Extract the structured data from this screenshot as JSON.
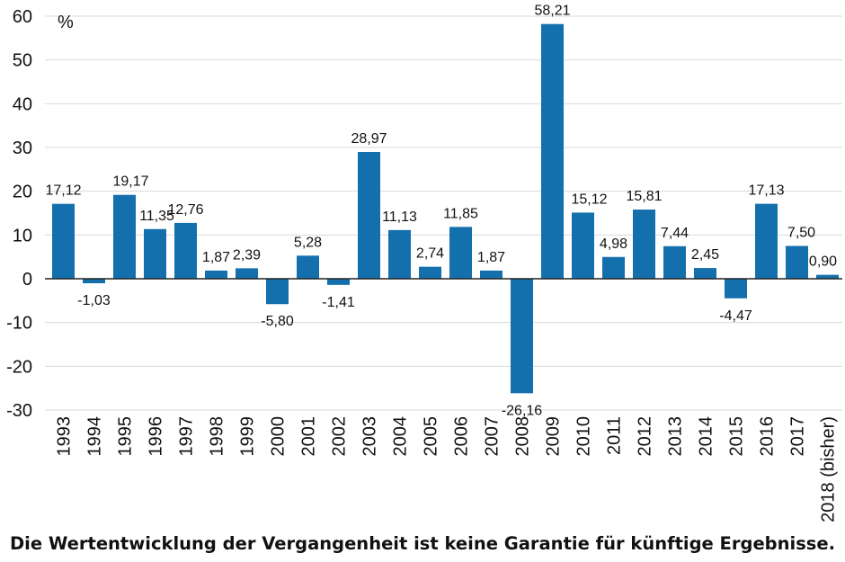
{
  "colors": {
    "bar": "#1470ad",
    "grid": "#d9d9d9",
    "axis": "#222222",
    "text": "#111111"
  },
  "chart_data": {
    "type": "bar",
    "unit_label": "%",
    "ylim": [
      -30,
      60
    ],
    "yticks": [
      -30,
      -20,
      -10,
      0,
      10,
      20,
      30,
      40,
      50,
      60
    ],
    "ytick_labels": [
      "-30",
      "-20",
      "-10",
      "0",
      "10",
      "20",
      "30",
      "40",
      "50",
      "60"
    ],
    "grid": true,
    "categories": [
      "1993",
      "1994",
      "1995",
      "1996",
      "1997",
      "1998",
      "1999",
      "2000",
      "2001",
      "2002",
      "2003",
      "2004",
      "2005",
      "2006",
      "2007",
      "2008",
      "2009",
      "2010",
      "2011",
      "2012",
      "2013",
      "2014",
      "2015",
      "2016",
      "2017",
      "2018 (bisher)"
    ],
    "values": [
      17.12,
      -1.03,
      19.17,
      11.35,
      12.76,
      1.87,
      2.39,
      -5.8,
      5.28,
      -1.41,
      28.97,
      11.13,
      2.74,
      11.85,
      1.87,
      -26.16,
      58.21,
      15.12,
      4.98,
      15.81,
      7.44,
      2.45,
      -4.47,
      17.13,
      7.5,
      0.9
    ],
    "value_labels": [
      "17,12",
      "-1,03",
      "19,17",
      "11,35",
      "12,76",
      "1,87",
      "2,39",
      "-5,80",
      "5,28",
      "-1,41",
      "28,97",
      "11,13",
      "2,74",
      "11,85",
      "1,87",
      "-26,16",
      "58,21",
      "15,12",
      "4,98",
      "15,81",
      "7,44",
      "2,45",
      "-4,47",
      "17,13",
      "7,50",
      "0,90"
    ]
  },
  "caption": "Die Wertentwicklung der Vergangenheit ist keine Garantie für künftige Ergebnisse."
}
